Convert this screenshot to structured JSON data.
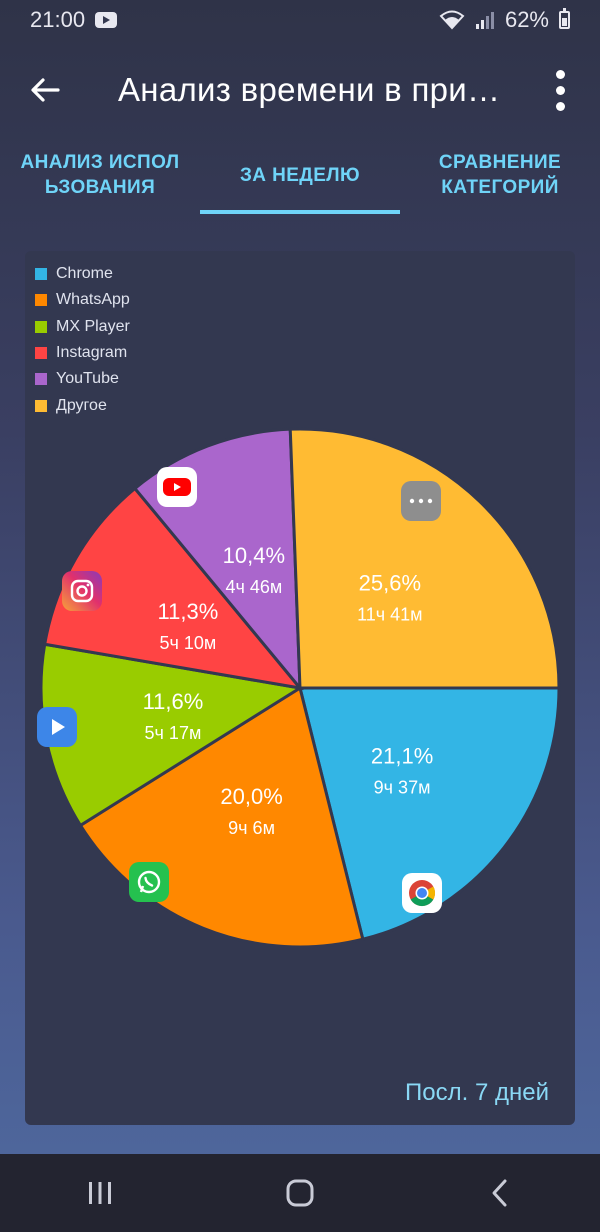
{
  "status": {
    "time": "21:00",
    "battery": "62%"
  },
  "app_bar": {
    "title": "Анализ времени в при…"
  },
  "tabs": [
    {
      "label": "АНАЛИЗ ИСПОЛ\nЬЗОВАНИЯ",
      "active": false
    },
    {
      "label": "ЗА НЕДЕЛЮ",
      "active": true
    },
    {
      "label": "СРАВНЕНИЕ\nКАТЕГОРИЙ",
      "active": false
    }
  ],
  "card": {
    "period_label": "Посл. 7 дней"
  },
  "icons": {
    "chrome": "chrome-icon",
    "whatsapp": "whatsapp-icon",
    "mxplayer": "mx-player-icon",
    "instagram": "instagram-icon",
    "youtube": "youtube-icon",
    "other": "more-icon"
  },
  "chart_data": {
    "type": "pie",
    "legend_position": "top-left",
    "slices": [
      {
        "name": "Chrome",
        "percent": 21.1,
        "percent_label": "21,1%",
        "time_label": "9ч 37м",
        "color": "#33b5e5",
        "icon": "chrome-icon"
      },
      {
        "name": "WhatsApp",
        "percent": 20.0,
        "percent_label": "20,0%",
        "time_label": "9ч 6м",
        "color": "#ff8800",
        "icon": "whatsapp-icon"
      },
      {
        "name": "MX Player",
        "percent": 11.6,
        "percent_label": "11,6%",
        "time_label": "5ч 17м",
        "color": "#99cc00",
        "icon": "mx-player-icon"
      },
      {
        "name": "Instagram",
        "percent": 11.3,
        "percent_label": "11,3%",
        "time_label": "5ч 10м",
        "color": "#ff4444",
        "icon": "instagram-icon"
      },
      {
        "name": "YouTube",
        "percent": 10.4,
        "percent_label": "10,4%",
        "time_label": "4ч 46м",
        "color": "#aa66cc",
        "icon": "youtube-icon"
      },
      {
        "name": "Другое",
        "percent": 25.6,
        "percent_label": "25,6%",
        "time_label": "11ч 41м",
        "color": "#ffbb33",
        "icon": "more-icon"
      }
    ]
  },
  "nav": {
    "recents_icon": "recents-icon",
    "home_icon": "home-icon",
    "back_icon": "back-icon"
  }
}
